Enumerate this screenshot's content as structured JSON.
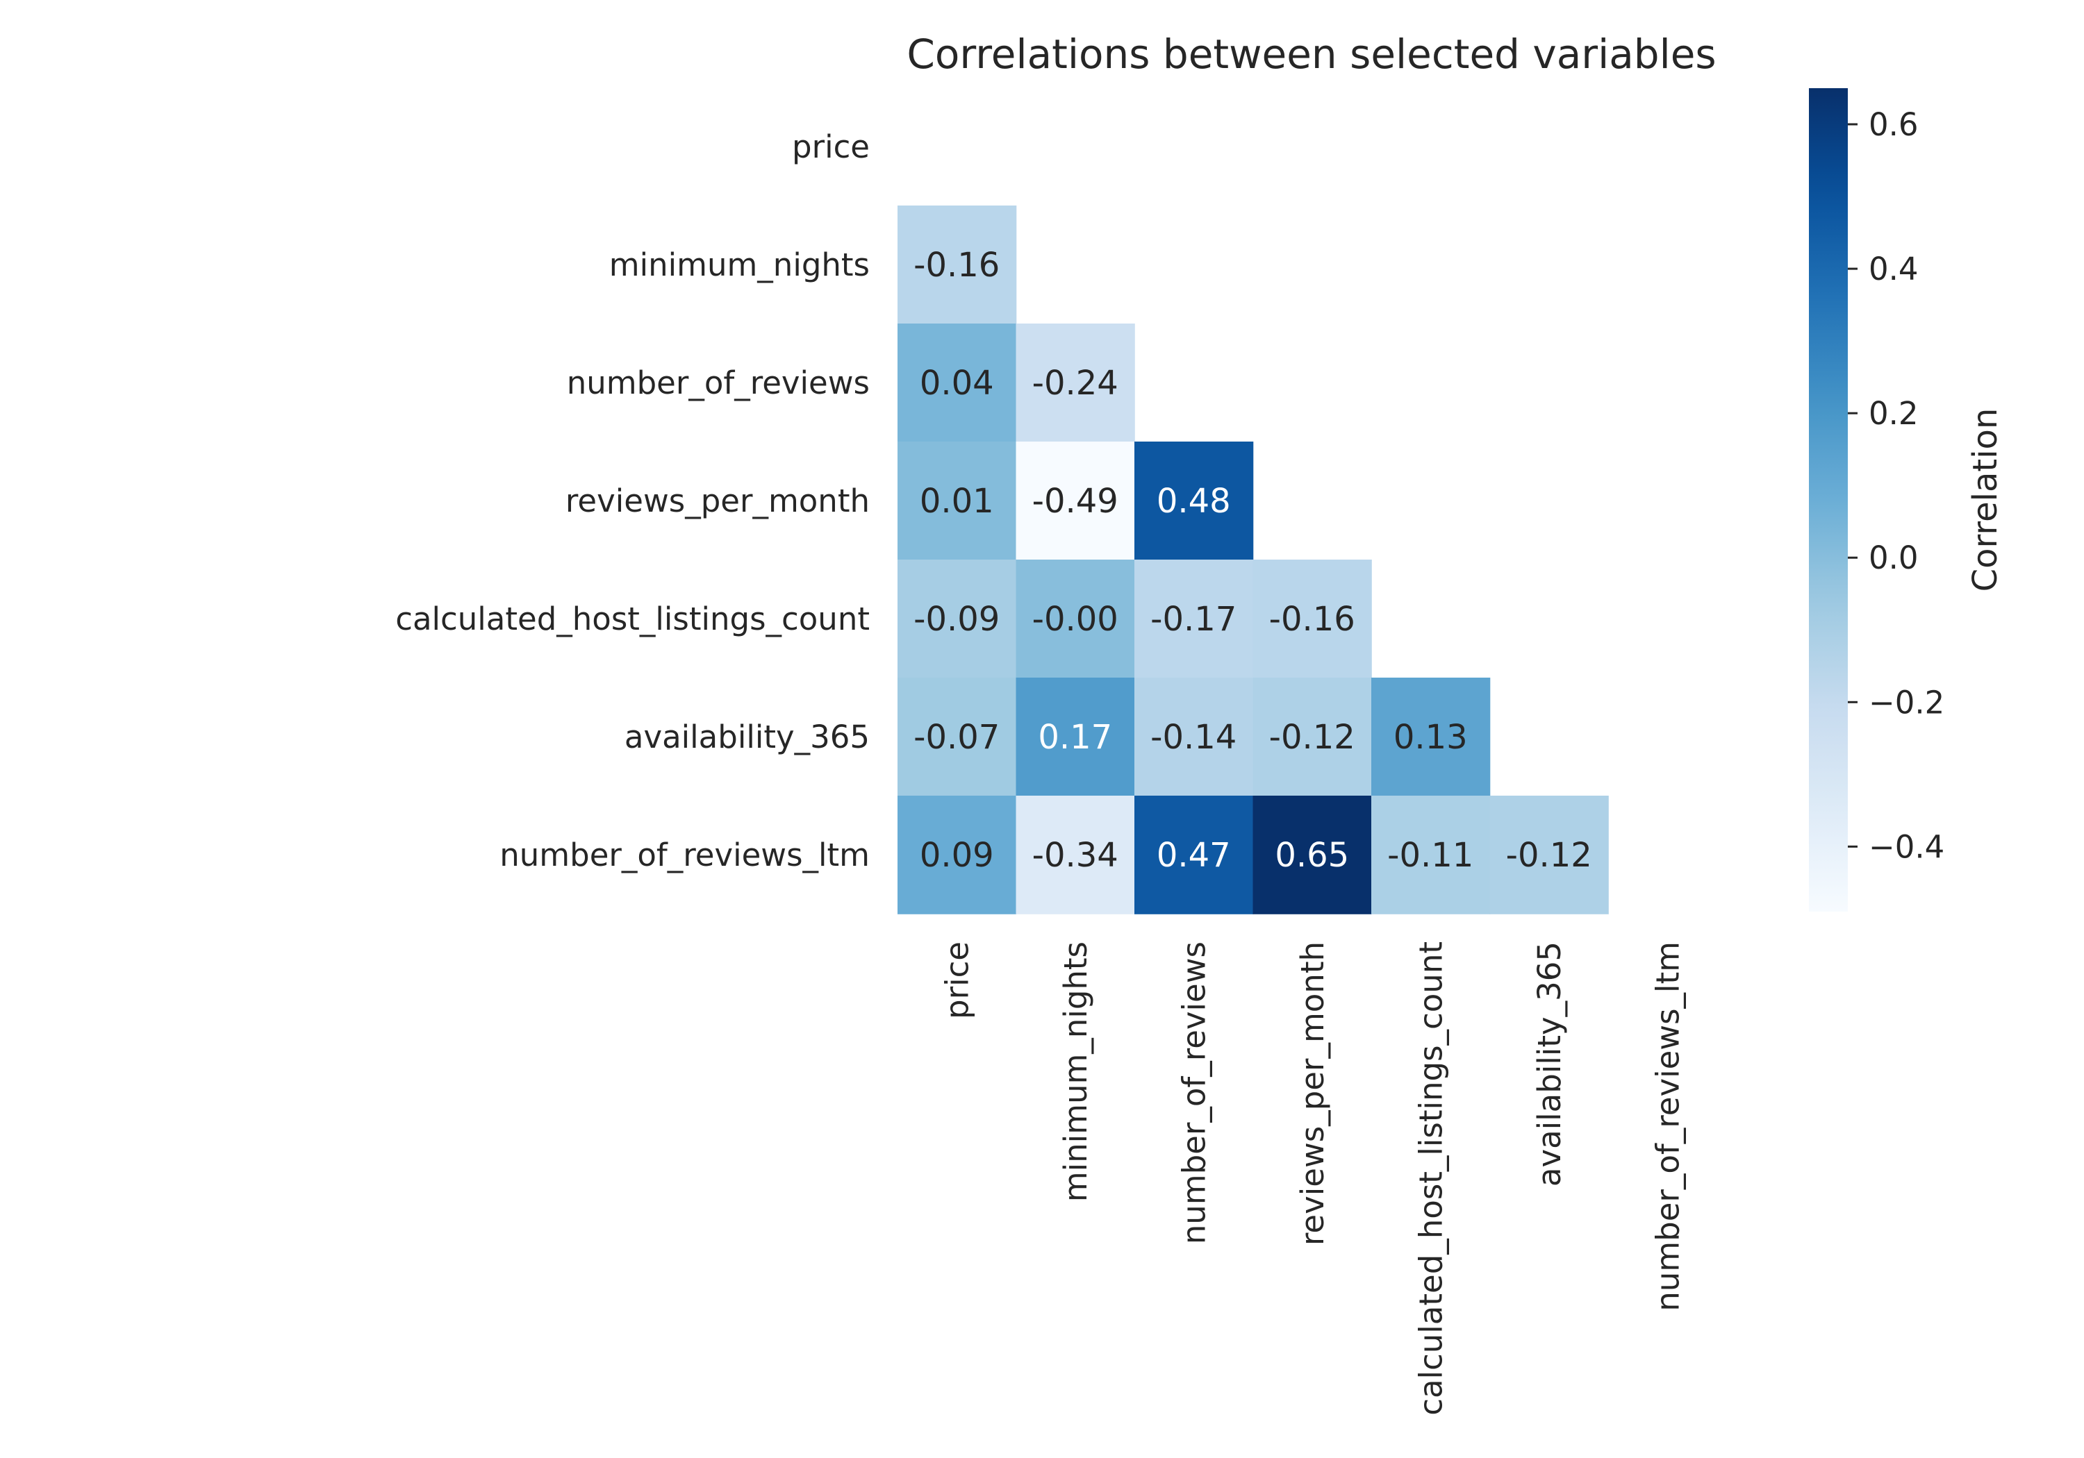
{
  "chart_data": {
    "type": "heatmap",
    "title": "Correlations between selected variables",
    "variables": [
      "price",
      "minimum_nights",
      "number_of_reviews",
      "reviews_per_month",
      "calculated_host_listings_count",
      "availability_365",
      "number_of_reviews_ltm"
    ],
    "mask": "upper-triangle-and-diagonal",
    "values": [
      [
        null,
        null,
        null,
        null,
        null,
        null,
        null
      ],
      [
        -0.16,
        null,
        null,
        null,
        null,
        null,
        null
      ],
      [
        0.04,
        -0.24,
        null,
        null,
        null,
        null,
        null
      ],
      [
        0.01,
        -0.49,
        0.48,
        null,
        null,
        null,
        null
      ],
      [
        -0.09,
        -0.0,
        -0.17,
        -0.16,
        null,
        null,
        null
      ],
      [
        -0.07,
        0.17,
        -0.14,
        -0.12,
        0.13,
        null,
        null
      ],
      [
        0.09,
        -0.34,
        0.47,
        0.65,
        -0.11,
        -0.12,
        null
      ]
    ],
    "value_labels": [
      [
        null,
        null,
        null,
        null,
        null,
        null,
        null
      ],
      [
        "-0.16",
        null,
        null,
        null,
        null,
        null,
        null
      ],
      [
        "0.04",
        "-0.24",
        null,
        null,
        null,
        null,
        null
      ],
      [
        "0.01",
        "-0.49",
        "0.48",
        null,
        null,
        null,
        null
      ],
      [
        "-0.09",
        "-0.00",
        "-0.17",
        "-0.16",
        null,
        null,
        null
      ],
      [
        "-0.07",
        "0.17",
        "-0.14",
        "-0.12",
        "0.13",
        null,
        null
      ],
      [
        "0.09",
        "-0.34",
        "0.47",
        "0.65",
        "-0.11",
        "-0.12",
        null
      ]
    ],
    "colormap": "Blues",
    "color_range": [
      -0.49,
      0.65
    ],
    "colorbar": {
      "label": "Correlation",
      "ticks": [
        -0.4,
        -0.2,
        0.0,
        0.2,
        0.4,
        0.6
      ],
      "tick_labels": [
        "−0.4",
        "−0.2",
        "0.0",
        "0.2",
        "0.4",
        "0.6"
      ]
    },
    "grid": false
  }
}
